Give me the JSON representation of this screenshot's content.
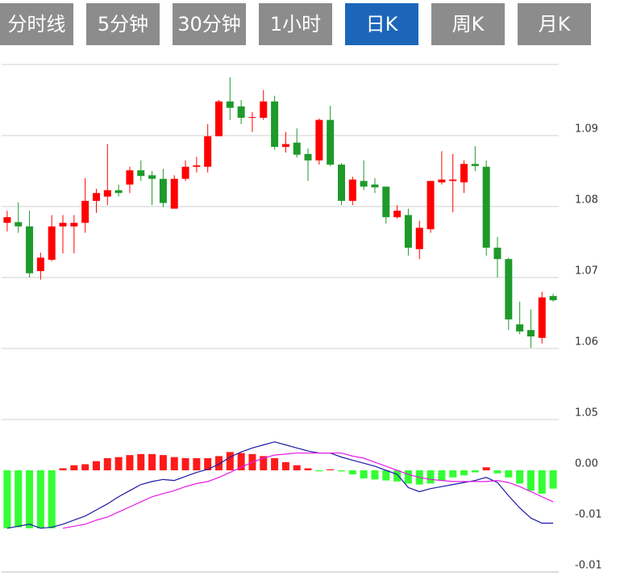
{
  "tabs": [
    {
      "label": "分时线",
      "active": false
    },
    {
      "label": "5分钟",
      "active": false
    },
    {
      "label": "30分钟",
      "active": false
    },
    {
      "label": "1小时",
      "active": false
    },
    {
      "label": "日K",
      "active": true
    },
    {
      "label": "周K",
      "active": false
    },
    {
      "label": "月K",
      "active": false
    }
  ],
  "chart_data": [
    {
      "type": "candlestick",
      "up_color": "#ff0000",
      "down_color": "#1e9a2a",
      "open": [
        1.0777,
        1.0778,
        1.0772,
        1.0709,
        1.0725,
        1.0772,
        1.0772,
        1.0777,
        1.0808,
        1.0814,
        1.0823,
        1.0831,
        1.0851,
        1.0844,
        1.0839,
        1.0797,
        1.0839,
        1.0856,
        1.0856,
        1.0899,
        1.0948,
        1.0941,
        1.0925,
        1.0925,
        1.0948,
        1.0884,
        1.089,
        1.0874,
        1.0865,
        1.0922,
        1.0859,
        1.0808,
        1.0836,
        1.0831,
        1.0828,
        1.0785,
        1.0788,
        1.074,
        1.0768,
        1.0834,
        1.0836,
        1.0834,
        1.086,
        1.0856,
        1.0742,
        1.0726,
        1.0634,
        1.0626,
        1.0615,
        1.0674
      ],
      "high": [
        1.0794,
        1.0806,
        1.0794,
        1.0735,
        1.0788,
        1.0788,
        1.0788,
        1.084,
        1.0825,
        1.0888,
        1.0831,
        1.0856,
        1.0865,
        1.085,
        1.0853,
        1.0844,
        1.0865,
        1.087,
        1.0916,
        1.095,
        1.0982,
        1.095,
        1.0933,
        1.0964,
        1.0956,
        1.0905,
        1.091,
        1.0882,
        1.0924,
        1.0942,
        1.0861,
        1.0842,
        1.0865,
        1.084,
        1.0828,
        1.0802,
        1.0797,
        1.078,
        1.0836,
        1.0878,
        1.0874,
        1.0865,
        1.0885,
        1.0865,
        1.0757,
        1.0728,
        1.0666,
        1.0655,
        1.068,
        1.0677
      ],
      "low": [
        1.0765,
        1.0763,
        1.07,
        1.0697,
        1.0723,
        1.0734,
        1.0734,
        1.0763,
        1.0791,
        1.0802,
        1.0814,
        1.0819,
        1.0836,
        1.0802,
        1.0799,
        1.0797,
        1.0836,
        1.0848,
        1.0848,
        1.0899,
        1.0922,
        1.0916,
        1.0905,
        1.0922,
        1.088,
        1.0876,
        1.0869,
        1.0836,
        1.0859,
        1.0857,
        1.0802,
        1.0802,
        1.0823,
        1.0819,
        1.0776,
        1.0783,
        1.0731,
        1.0726,
        1.0763,
        1.0831,
        1.0792,
        1.0819,
        1.085,
        1.0731,
        1.07,
        1.0626,
        1.062,
        1.0601,
        1.0607,
        1.0666
      ],
      "close": [
        1.0785,
        1.0772,
        1.0706,
        1.0728,
        1.0772,
        1.0777,
        1.0777,
        1.0808,
        1.0819,
        1.0823,
        1.0819,
        1.0851,
        1.0843,
        1.0839,
        1.0805,
        1.0839,
        1.0856,
        1.0858,
        1.0899,
        1.0948,
        1.0939,
        1.0925,
        1.0926,
        1.0948,
        1.0884,
        1.0888,
        1.0873,
        1.0865,
        1.0922,
        1.0859,
        1.0808,
        1.0838,
        1.0828,
        1.0827,
        1.0785,
        1.0794,
        1.0742,
        1.077,
        1.0836,
        1.0838,
        1.0838,
        1.086,
        1.0857,
        1.0742,
        1.0726,
        1.0641,
        1.0624,
        1.0617,
        1.0672,
        1.0668
      ],
      "ylim": [
        1.05,
        1.1
      ],
      "yticks": [
        1.05,
        1.06,
        1.07,
        1.08,
        1.09
      ],
      "grid": true
    },
    {
      "type": "macd",
      "up_color": "#ff1a1a",
      "down_color": "#33ff33",
      "values": [
        -0.0057,
        -0.0056,
        -0.0057,
        -0.0057,
        -0.0057,
        0.0002,
        0.0005,
        0.0006,
        0.0009,
        0.0012,
        0.0013,
        0.0015,
        0.0016,
        0.0016,
        0.0015,
        0.0013,
        0.0012,
        0.0012,
        0.0012,
        0.0014,
        0.0018,
        0.0017,
        0.0016,
        0.0014,
        0.0012,
        0.0008,
        0.0005,
        0.0002,
        -0.0001,
        0.0001,
        -0.0001,
        -0.0004,
        -0.0008,
        -0.0009,
        -0.001,
        -0.0011,
        -0.0013,
        -0.0014,
        -0.0013,
        -0.001,
        -0.0007,
        -0.0005,
        -0.0002,
        0.0003,
        -0.0003,
        -0.0007,
        -0.0013,
        -0.002,
        -0.0023,
        -0.0018
      ],
      "series": [
        {
          "color": "#1a1aa6",
          "values": [
            -0.0057,
            -0.0055,
            -0.0053,
            -0.0057,
            -0.0056,
            -0.0053,
            -0.0049,
            -0.0045,
            -0.0039,
            -0.0033,
            -0.0026,
            -0.002,
            -0.0014,
            -0.0011,
            -0.0009,
            -0.001,
            -0.0006,
            -0.0002,
            0.0001,
            0.0006,
            0.0013,
            0.0018,
            0.0022,
            0.0025,
            0.0028,
            0.0025,
            0.0022,
            0.0019,
            0.0017,
            0.0017,
            0.0013,
            0.001,
            0.0007,
            0.0004,
            0,
            -0.0004,
            -0.0017,
            -0.0021,
            -0.0018,
            -0.0016,
            -0.0014,
            -0.0012,
            -0.001,
            -0.0007,
            -0.0012,
            -0.0025,
            -0.0037,
            -0.0047,
            -0.0052,
            -0.0052
          ]
        },
        {
          "color": "#e619e6",
          "values": [
            null,
            null,
            null,
            null,
            null,
            -0.0057,
            -0.0055,
            -0.0053,
            -0.0049,
            -0.0046,
            -0.0041,
            -0.0036,
            -0.0031,
            -0.0026,
            -0.0023,
            -0.002,
            -0.0016,
            -0.0013,
            -0.0011,
            -0.0007,
            -0.0002,
            0.0003,
            0.0008,
            0.0012,
            0.0015,
            0.0016,
            0.0017,
            0.0017,
            0.0017,
            0.0017,
            0.0017,
            0.0014,
            0.0012,
            0.0008,
            0.0004,
            0,
            -0.0004,
            -0.0007,
            -0.0009,
            -0.001,
            -0.0011,
            -0.0011,
            -0.0011,
            -0.0011,
            -0.001,
            -0.0012,
            -0.0016,
            -0.0021,
            -0.0026,
            -0.0031
          ]
        }
      ],
      "ylim": [
        -0.01,
        0.005
      ],
      "yticks": [
        {
          "value": 0,
          "label": "0.00"
        },
        {
          "value": -0.005,
          "label": "-0.01"
        },
        -0.01
      ],
      "grid": false
    }
  ]
}
